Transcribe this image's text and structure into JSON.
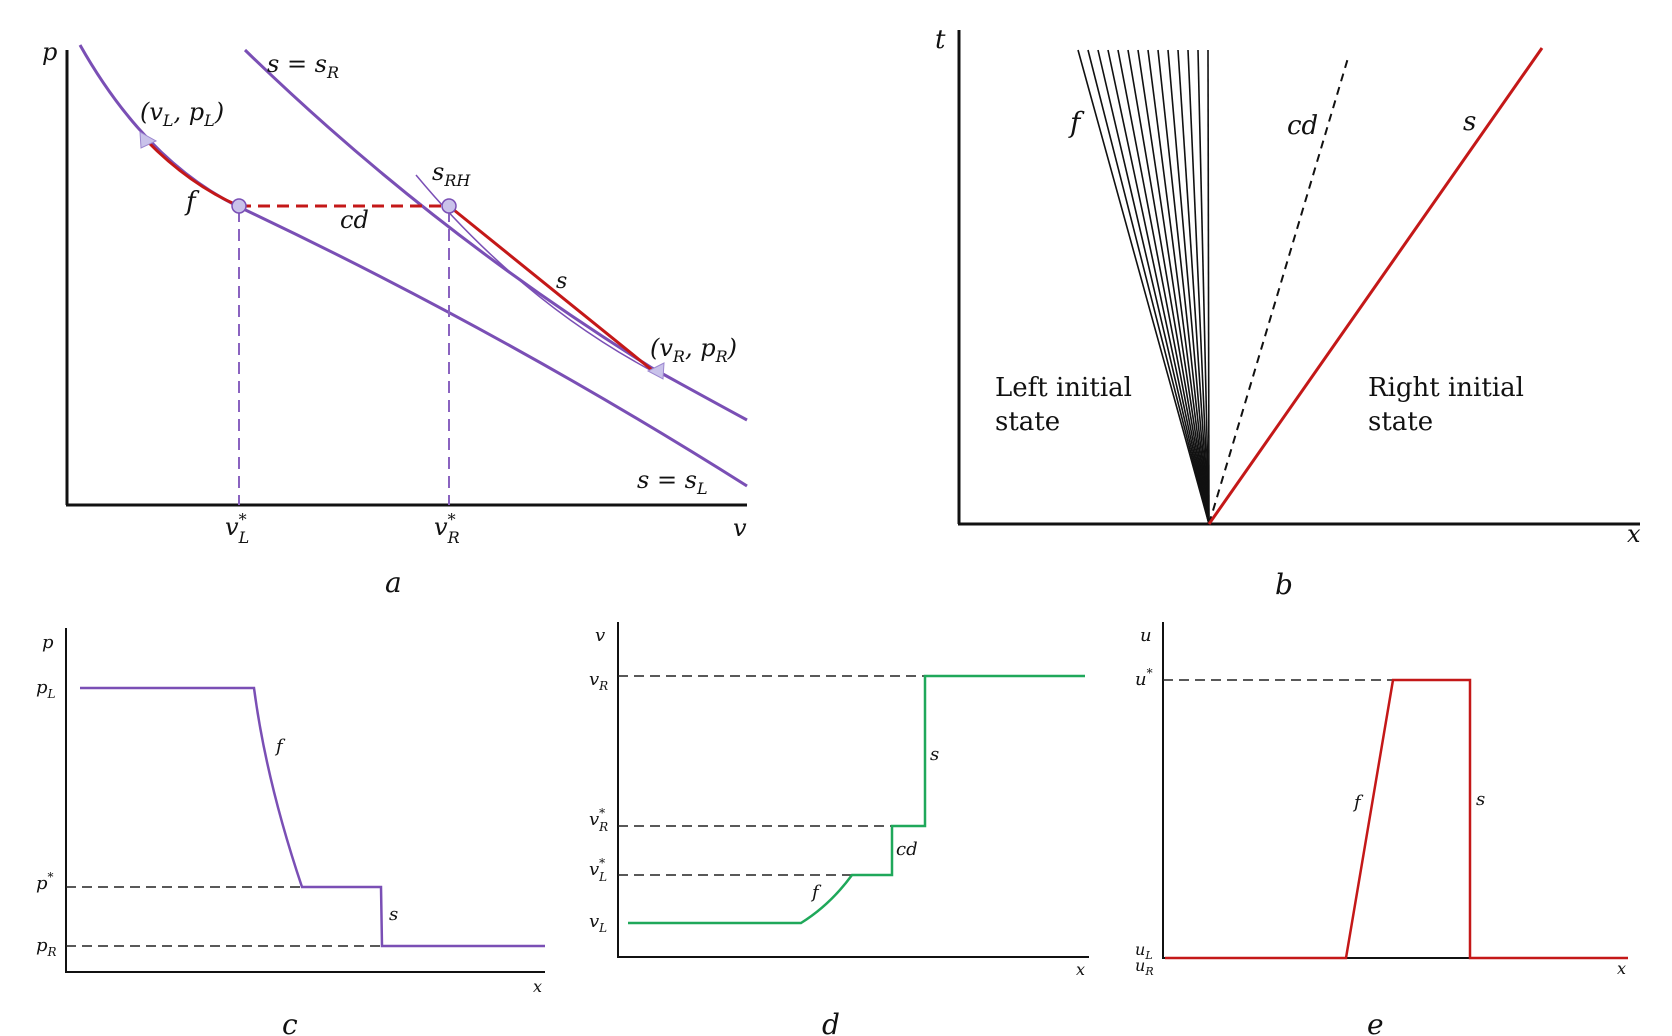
{
  "panels": {
    "a": {
      "caption": "a",
      "y_axis": "p",
      "x_axis": "v",
      "isentrope_right": "s = s",
      "isentrope_right_sub": "R",
      "isentrope_left": "s = s",
      "isentrope_left_sub": "L",
      "hugoniot": "s",
      "hugoniot_sub": "RH",
      "left_state": "(v",
      "left_state_sub1": "L",
      "left_state_mid": ", p",
      "left_state_sub2": "L",
      "left_state_end": ")",
      "right_state": "(v",
      "right_state_sub1": "R",
      "right_state_mid": ", p",
      "right_state_sub2": "R",
      "right_state_end": ")",
      "fan": "f",
      "contact": "cd",
      "shock": "s",
      "vL_star": "v",
      "vL_star_sup": "*",
      "vL_star_sub": "L",
      "vR_star": "v",
      "vR_star_sup": "*",
      "vR_star_sub": "R"
    },
    "b": {
      "caption": "b",
      "y_axis": "t",
      "x_axis": "x",
      "fan": "f",
      "contact": "cd",
      "shock": "s",
      "left_region_1": "Left initial",
      "left_region_2": "state",
      "right_region_1": "Right initial",
      "right_region_2": "state"
    },
    "c": {
      "caption": "c",
      "y_axis": "p",
      "x_axis": "x",
      "tick_top": "p",
      "tick_top_sub": "L",
      "tick_mid": "p",
      "tick_mid_sup": "*",
      "tick_bot": "p",
      "tick_bot_sub": "R",
      "fan": "f",
      "shock": "s"
    },
    "d": {
      "caption": "d",
      "y_axis": "v",
      "x_axis": "x",
      "tick_top": "v",
      "tick_top_sub": "R",
      "tick_mid1": "v",
      "tick_mid1_sup": "*",
      "tick_mid1_sub": "R",
      "tick_mid2": "v",
      "tick_mid2_sup": "*",
      "tick_mid2_sub": "L",
      "tick_bot": "v",
      "tick_bot_sub": "L",
      "fan": "f",
      "contact": "cd",
      "shock": "s"
    },
    "e": {
      "caption": "e",
      "y_axis": "u",
      "x_axis": "x",
      "tick_top": "u",
      "tick_top_sup": "*",
      "tick_bot1": "u",
      "tick_bot1_sub": "L",
      "tick_bot2": "u",
      "tick_bot2_sub": "R",
      "fan": "f",
      "shock": "s"
    }
  },
  "colors": {
    "isentrope": "#7a4fb5",
    "wave_red": "#c41818",
    "green": "#1fa85a",
    "dashed_purple": "#8a63c0",
    "marker": "#c9c2ea"
  }
}
